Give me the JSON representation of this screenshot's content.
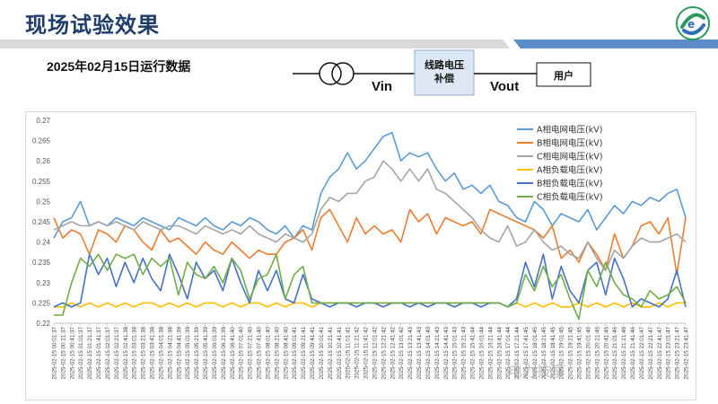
{
  "header": {
    "title": "现场试验效果",
    "subtitle": "2025年02月15日运行数据",
    "accent_color": "#1f3d6b",
    "bar_color": "#5b8cc7",
    "logo_icon": "company-logo-icon"
  },
  "diagram": {
    "box_label": "线路电压\n补偿",
    "box_line1": "线路电压",
    "box_line2": "补偿",
    "user_label": "用户",
    "vin_label": "Vin",
    "vout_label": "Vout",
    "transformer_icon": "transformer-icon"
  },
  "watermark": "电力技享",
  "chart_data": {
    "type": "line",
    "ylim": [
      0.22,
      0.27
    ],
    "yticks": [
      0.22,
      0.225,
      0.23,
      0.235,
      0.24,
      0.245,
      0.25,
      0.255,
      0.26,
      0.265,
      0.27
    ],
    "ytick_labels": [
      "0.22",
      "0.225",
      "0.23",
      "0.235",
      "0.24",
      "0.245",
      "0.25",
      "0.255",
      "0.26",
      "0.265",
      "0.27"
    ],
    "grid": false,
    "legend_position": "top-right",
    "xtick_labels": [
      "2025-02-15 00:01:37",
      "2025-02-15 00:21:37",
      "2025-02-15 00:41:37",
      "2025-02-15 01:01:37",
      "2025-02-15 01:21:37",
      "2025-02-15 01:41:37",
      "2025-02-15 02:01:37",
      "2025-02-15 02:21:37",
      "2025-02-15 02:41:38",
      "2025-02-15 03:01:38",
      "2025-02-15 03:21:38",
      "2025-02-15 03:41:38",
      "2025-02-15 04:01:38",
      "2025-02-15 04:21:38",
      "2025-02-15 04:41:39",
      "2025-02-15 05:01:39",
      "2025-02-15 05:21:39",
      "2025-02-15 05:41:39",
      "2025-02-15 06:01:39",
      "2025-02-15 06:21:39",
      "2025-02-15 06:41:40",
      "2025-02-15 07:01:40",
      "2025-02-15 07:21:40",
      "2025-02-15 07:41:40",
      "2025-02-15 08:01:40",
      "2025-02-15 08:21:40",
      "2025-02-15 08:41:40",
      "2025-02-15 09:01:41",
      "2025-02-15 09:21:41",
      "2025-02-15 09:41:41",
      "2025-02-15 10:01:41",
      "2025-02-15 10:21:41",
      "2025-02-15 10:41:41",
      "2025-02-15 11:01:41",
      "2025-02-15 11:21:42",
      "2025-02-15 11:41:42",
      "2025-02-15 12:01:42",
      "2025-02-15 12:21:42",
      "2025-02-15 12:41:42",
      "2025-02-15 13:01:42",
      "2025-02-15 13:21:43",
      "2025-02-15 13:41:43",
      "2025-02-15 14:01:43",
      "2025-02-15 14:21:43",
      "2025-02-15 14:41:43",
      "2025-02-15 15:01:43",
      "2025-02-15 15:21:43",
      "2025-02-15 15:41:44",
      "2025-02-15 16:01:44",
      "2025-02-15 16:21:44",
      "2025-02-15 16:41:44",
      "2025-02-15 17:01:44",
      "2025-02-15 17:21:44",
      "2025-02-15 17:41:45",
      "2025-02-15 18:01:45",
      "2025-02-15 18:21:45",
      "2025-02-15 18:41:45",
      "2025-02-15 19:01:45",
      "2025-02-15 19:21:45",
      "2025-02-15 19:41:45",
      "2025-02-15 20:01:46",
      "2025-02-15 20:21:46",
      "2025-02-15 20:41:46",
      "2025-02-15 21:01:46",
      "2025-02-15 21:21:46",
      "2025-02-15 21:41:46",
      "2025-02-15 22:01:47",
      "2025-02-15 22:21:47",
      "2025-02-15 22:41:47",
      "2025-02-15 23:01:47",
      "2025-02-15 23:21:47",
      "2025-02-15 23:41:47"
    ],
    "series": [
      {
        "name": "A相电网电压(kV)",
        "color": "#5b9bd5",
        "values": [
          0.241,
          0.245,
          0.246,
          0.25,
          0.244,
          0.245,
          0.244,
          0.246,
          0.245,
          0.244,
          0.246,
          0.245,
          0.244,
          0.243,
          0.246,
          0.245,
          0.244,
          0.246,
          0.244,
          0.243,
          0.245,
          0.244,
          0.246,
          0.245,
          0.243,
          0.242,
          0.244,
          0.241,
          0.244,
          0.243,
          0.252,
          0.256,
          0.258,
          0.262,
          0.258,
          0.26,
          0.263,
          0.266,
          0.267,
          0.26,
          0.262,
          0.261,
          0.262,
          0.258,
          0.255,
          0.257,
          0.253,
          0.254,
          0.252,
          0.254,
          0.25,
          0.249,
          0.246,
          0.245,
          0.25,
          0.248,
          0.244,
          0.247,
          0.246,
          0.245,
          0.248,
          0.243,
          0.246,
          0.249,
          0.247,
          0.25,
          0.249,
          0.251,
          0.25,
          0.252,
          0.253,
          0.246
        ]
      },
      {
        "name": "B相电网电压(kV)",
        "color": "#ed7d31",
        "values": [
          0.246,
          0.241,
          0.243,
          0.242,
          0.237,
          0.243,
          0.242,
          0.24,
          0.244,
          0.243,
          0.24,
          0.238,
          0.243,
          0.24,
          0.241,
          0.239,
          0.237,
          0.24,
          0.238,
          0.237,
          0.24,
          0.238,
          0.236,
          0.238,
          0.237,
          0.237,
          0.24,
          0.241,
          0.243,
          0.238,
          0.246,
          0.248,
          0.244,
          0.24,
          0.246,
          0.242,
          0.244,
          0.242,
          0.243,
          0.24,
          0.248,
          0.245,
          0.247,
          0.242,
          0.246,
          0.245,
          0.244,
          0.245,
          0.242,
          0.248,
          0.247,
          0.246,
          0.245,
          0.244,
          0.243,
          0.241,
          0.244,
          0.236,
          0.238,
          0.235,
          0.24,
          0.237,
          0.233,
          0.242,
          0.236,
          0.239,
          0.244,
          0.245,
          0.242,
          0.246,
          0.232,
          0.246
        ]
      },
      {
        "name": "C相电网电压(kV)",
        "color": "#a5a5a5",
        "values": [
          0.243,
          0.244,
          0.245,
          0.244,
          0.244,
          0.245,
          0.244,
          0.245,
          0.244,
          0.243,
          0.245,
          0.244,
          0.243,
          0.244,
          0.244,
          0.243,
          0.242,
          0.244,
          0.243,
          0.242,
          0.243,
          0.242,
          0.244,
          0.242,
          0.241,
          0.24,
          0.242,
          0.241,
          0.24,
          0.242,
          0.248,
          0.251,
          0.25,
          0.252,
          0.252,
          0.255,
          0.256,
          0.26,
          0.258,
          0.255,
          0.258,
          0.255,
          0.258,
          0.253,
          0.252,
          0.25,
          0.248,
          0.246,
          0.243,
          0.241,
          0.24,
          0.244,
          0.239,
          0.24,
          0.243,
          0.24,
          0.238,
          0.239,
          0.237,
          0.236,
          0.24,
          0.236,
          0.233,
          0.238,
          0.236,
          0.239,
          0.241,
          0.24,
          0.24,
          0.241,
          0.242,
          0.24
        ]
      },
      {
        "name": "A相负载电压(kV)",
        "color": "#ffc000",
        "values": [
          0.224,
          0.224,
          0.225,
          0.224,
          0.225,
          0.224,
          0.225,
          0.224,
          0.225,
          0.224,
          0.225,
          0.225,
          0.224,
          0.225,
          0.224,
          0.225,
          0.224,
          0.225,
          0.225,
          0.224,
          0.225,
          0.224,
          0.225,
          0.225,
          0.224,
          0.225,
          0.224,
          0.225,
          0.225,
          0.224,
          0.225,
          0.225,
          0.225,
          0.225,
          0.225,
          0.225,
          0.225,
          0.225,
          0.225,
          0.225,
          0.225,
          0.225,
          0.225,
          0.225,
          0.225,
          0.225,
          0.225,
          0.225,
          0.225,
          0.225,
          0.225,
          0.224,
          0.225,
          0.224,
          0.225,
          0.224,
          0.225,
          0.224,
          0.224,
          0.225,
          0.224,
          0.225,
          0.224,
          0.225,
          0.224,
          0.225,
          0.224,
          0.224,
          0.225,
          0.224,
          0.225,
          0.225
        ]
      },
      {
        "name": "B相负载电压(kV)",
        "color": "#4472c4",
        "values": [
          0.224,
          0.225,
          0.224,
          0.225,
          0.237,
          0.232,
          0.236,
          0.229,
          0.235,
          0.23,
          0.236,
          0.231,
          0.228,
          0.237,
          0.232,
          0.226,
          0.235,
          0.231,
          0.233,
          0.228,
          0.236,
          0.23,
          0.225,
          0.233,
          0.228,
          0.233,
          0.226,
          0.225,
          0.232,
          0.226,
          0.225,
          0.224,
          0.225,
          0.225,
          0.224,
          0.225,
          0.225,
          0.224,
          0.225,
          0.225,
          0.224,
          0.225,
          0.224,
          0.225,
          0.225,
          0.224,
          0.225,
          0.225,
          0.224,
          0.225,
          0.225,
          0.224,
          0.226,
          0.235,
          0.229,
          0.237,
          0.226,
          0.234,
          0.228,
          0.225,
          0.233,
          0.235,
          0.227,
          0.236,
          0.231,
          0.224,
          0.226,
          0.225,
          0.224,
          0.226,
          0.233,
          0.224
        ]
      },
      {
        "name": "C相负载电压(kV)",
        "color": "#70ad47",
        "values": [
          0.222,
          0.222,
          0.23,
          0.236,
          0.234,
          0.237,
          0.233,
          0.237,
          0.236,
          0.237,
          0.232,
          0.236,
          0.234,
          0.236,
          0.227,
          0.235,
          0.232,
          0.231,
          0.234,
          0.23,
          0.236,
          0.233,
          0.226,
          0.231,
          0.232,
          0.237,
          0.226,
          0.232,
          0.234,
          0.225,
          0.225,
          0.225,
          0.225,
          0.225,
          0.225,
          0.225,
          0.225,
          0.225,
          0.225,
          0.225,
          0.225,
          0.225,
          0.225,
          0.225,
          0.225,
          0.225,
          0.225,
          0.225,
          0.225,
          0.225,
          0.225,
          0.224,
          0.225,
          0.232,
          0.228,
          0.234,
          0.229,
          0.232,
          0.226,
          0.221,
          0.233,
          0.229,
          0.235,
          0.23,
          0.227,
          0.226,
          0.224,
          0.228,
          0.226,
          0.227,
          0.229,
          0.225
        ]
      }
    ]
  }
}
